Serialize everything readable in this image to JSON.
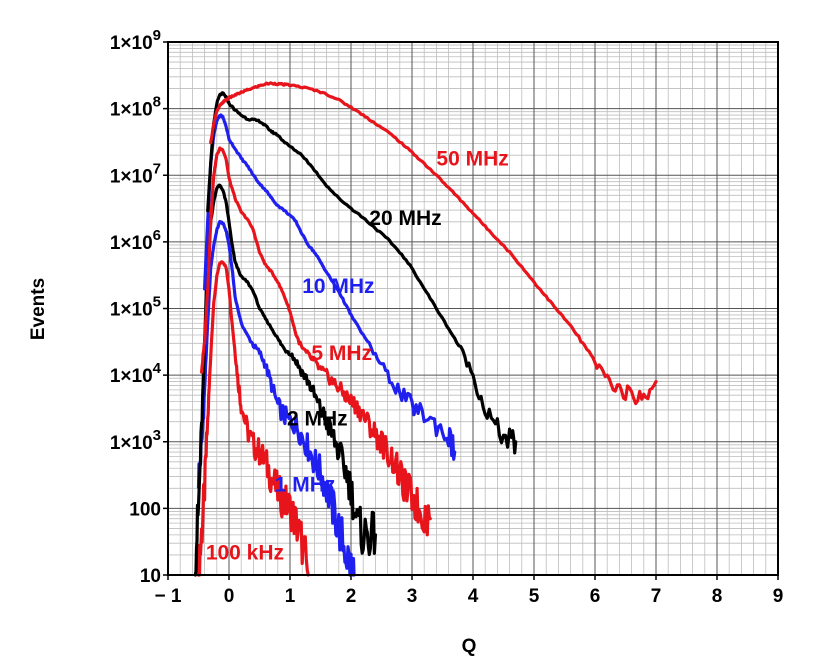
{
  "chart_data": {
    "type": "line",
    "title": "",
    "xlabel": "Q",
    "ylabel": "Events",
    "xlim": [
      -1,
      9
    ],
    "ylim": [
      10,
      1000000000
    ],
    "yscale": "log",
    "grid": true,
    "x_ticks": [
      "− 1",
      "0",
      "1",
      "2",
      "3",
      "4",
      "5",
      "6",
      "7",
      "8",
      "9"
    ],
    "x_tick_values": [
      -1,
      0,
      1,
      2,
      3,
      4,
      5,
      6,
      7,
      8,
      9
    ],
    "y_ticks": [
      {
        "value": 10,
        "label": "10"
      },
      {
        "value": 100,
        "label": "100"
      },
      {
        "value": 1000,
        "label": "1×10",
        "exp": "3"
      },
      {
        "value": 10000,
        "label": "1×10",
        "exp": "4"
      },
      {
        "value": 100000,
        "label": "1×10",
        "exp": "5"
      },
      {
        "value": 1000000,
        "label": "1×10",
        "exp": "6"
      },
      {
        "value": 10000000,
        "label": "1×10",
        "exp": "7"
      },
      {
        "value": 100000000,
        "label": "1×10",
        "exp": "8"
      },
      {
        "value": 1000000000,
        "label": "1×10",
        "exp": "9"
      }
    ],
    "series": [
      {
        "name": "100 kHz",
        "label": "100 kHz",
        "color": "#e8141b",
        "x": [
          -0.5,
          -0.45,
          -0.4,
          -0.35,
          -0.3,
          -0.25,
          -0.2,
          -0.15,
          -0.1,
          -0.05,
          0.0,
          0.05,
          0.1,
          0.15,
          0.2,
          0.3,
          0.4,
          0.5,
          0.6,
          0.7,
          0.8,
          0.9,
          1.0,
          1.1,
          1.2,
          1.3
        ],
        "y": [
          10,
          40,
          200,
          2000,
          20000,
          120000,
          300000,
          480000,
          500000,
          420000,
          200000,
          60000,
          22000,
          8000,
          3500,
          1500,
          900,
          700,
          500,
          280,
          180,
          130,
          100,
          60,
          30,
          10
        ]
      },
      {
        "name": "1 MHz",
        "label": "1 MHz",
        "color": "#1f1ff0",
        "x": [
          -0.5,
          -0.45,
          -0.4,
          -0.35,
          -0.3,
          -0.25,
          -0.2,
          -0.15,
          -0.1,
          -0.05,
          0.0,
          0.05,
          0.1,
          0.2,
          0.3,
          0.4,
          0.5,
          0.6,
          0.7,
          0.8,
          0.9,
          1.0,
          1.1,
          1.2,
          1.3,
          1.4,
          1.5,
          1.6,
          1.7,
          1.8,
          1.9,
          2.0,
          2.05
        ],
        "y": [
          300,
          800,
          6000,
          60000,
          400000,
          900000,
          1500000,
          2000000,
          1900000,
          1500000,
          900000,
          400000,
          150000,
          60000,
          40000,
          28000,
          22000,
          14000,
          7000,
          3500,
          2500,
          2000,
          1800,
          1200,
          800,
          500,
          350,
          200,
          100,
          50,
          25,
          12,
          10
        ]
      },
      {
        "name": "2 MHz",
        "label": "2 MHz",
        "color": "#000000",
        "x": [
          -0.55,
          -0.5,
          -0.45,
          -0.4,
          -0.35,
          -0.3,
          -0.25,
          -0.2,
          -0.15,
          -0.1,
          -0.05,
          0.0,
          0.05,
          0.1,
          0.2,
          0.3,
          0.4,
          0.5,
          0.6,
          0.7,
          0.8,
          0.9,
          1.0,
          1.1,
          1.2,
          1.3,
          1.4,
          1.5,
          1.6,
          1.7,
          1.8,
          1.9,
          2.0,
          2.1,
          2.2,
          2.3,
          2.4
        ],
        "y": [
          18,
          100,
          1500,
          30000,
          600000,
          2000000,
          4000000,
          6500000,
          7000000,
          6000000,
          4000000,
          2000000,
          900000,
          500000,
          300000,
          250000,
          180000,
          100000,
          70000,
          50000,
          35000,
          25000,
          22000,
          16000,
          11000,
          8000,
          5000,
          3000,
          2000,
          1200,
          700,
          400,
          200,
          60,
          40,
          40,
          40
        ]
      },
      {
        "name": "5 MHz",
        "label": "5 MHz",
        "color": "#e8141b",
        "x": [
          -0.45,
          -0.4,
          -0.35,
          -0.3,
          -0.25,
          -0.2,
          -0.15,
          -0.1,
          -0.05,
          0.0,
          0.1,
          0.2,
          0.3,
          0.4,
          0.5,
          0.6,
          0.7,
          0.8,
          0.9,
          1.0,
          1.1,
          1.2,
          1.3,
          1.4,
          1.5,
          1.6,
          1.7,
          1.8,
          1.9,
          2.0,
          2.1,
          2.2,
          2.3,
          2.4,
          2.5,
          2.6,
          2.7,
          2.8,
          2.9,
          3.0,
          3.1,
          3.2,
          3.3
        ],
        "y": [
          12000,
          30000,
          200000,
          2000000,
          10000000,
          20000000,
          25000000,
          24000000,
          18000000,
          9000000,
          4500000,
          2800000,
          2200000,
          1500000,
          700000,
          450000,
          350000,
          250000,
          160000,
          90000,
          40000,
          25000,
          20000,
          16000,
          12000,
          10000,
          8000,
          6500,
          5000,
          4000,
          3300,
          2500,
          1800,
          1300,
          1000,
          700,
          500,
          300,
          200,
          150,
          100,
          80,
          70
        ]
      },
      {
        "name": "10 MHz",
        "label": "10 MHz",
        "color": "#1f1ff0",
        "x": [
          -0.4,
          -0.35,
          -0.3,
          -0.25,
          -0.2,
          -0.15,
          -0.1,
          -0.05,
          0.0,
          0.1,
          0.2,
          0.3,
          0.4,
          0.5,
          0.6,
          0.7,
          0.8,
          0.9,
          1.0,
          1.1,
          1.2,
          1.3,
          1.4,
          1.5,
          1.6,
          1.7,
          1.8,
          1.9,
          2.0,
          2.2,
          2.4,
          2.6,
          2.8,
          3.0,
          3.2,
          3.4,
          3.6,
          3.7
        ],
        "y": [
          200000,
          2000000,
          15000000,
          40000000,
          65000000,
          80000000,
          75000000,
          55000000,
          35000000,
          25000000,
          18000000,
          14000000,
          10000000,
          7500000,
          6000000,
          4500000,
          3500000,
          3000000,
          2500000,
          2000000,
          1300000,
          900000,
          700000,
          500000,
          350000,
          250000,
          180000,
          120000,
          80000,
          40000,
          20000,
          10000,
          5500,
          3500,
          2500,
          1800,
          1200,
          700
        ]
      },
      {
        "name": "20 MHz",
        "label": "20 MHz",
        "color": "#000000",
        "x": [
          -0.35,
          -0.3,
          -0.25,
          -0.2,
          -0.15,
          -0.1,
          -0.05,
          0.0,
          0.1,
          0.2,
          0.3,
          0.4,
          0.5,
          0.6,
          0.7,
          0.8,
          0.9,
          1.0,
          1.2,
          1.4,
          1.6,
          1.8,
          2.0,
          2.2,
          2.4,
          2.6,
          2.8,
          3.0,
          3.2,
          3.4,
          3.6,
          3.8,
          4.0,
          4.2,
          4.4,
          4.6,
          4.7
        ],
        "y": [
          3000000,
          15000000,
          60000000,
          120000000,
          160000000,
          170000000,
          150000000,
          120000000,
          95000000,
          80000000,
          70000000,
          68000000,
          65000000,
          55000000,
          45000000,
          40000000,
          32000000,
          27000000,
          20000000,
          12000000,
          7000000,
          4500000,
          3200000,
          2300000,
          1600000,
          1100000,
          700000,
          400000,
          200000,
          100000,
          50000,
          25000,
          10000,
          3000,
          1500,
          1000,
          1000
        ]
      },
      {
        "name": "50 MHz",
        "label": "50 MHz",
        "color": "#e8141b",
        "x": [
          -0.3,
          -0.25,
          -0.2,
          -0.15,
          -0.1,
          -0.05,
          0.0,
          0.1,
          0.2,
          0.3,
          0.4,
          0.5,
          0.6,
          0.7,
          0.8,
          0.9,
          1.0,
          1.2,
          1.4,
          1.6,
          1.8,
          2.0,
          2.2,
          2.4,
          2.6,
          2.8,
          3.0,
          3.2,
          3.4,
          3.6,
          3.8,
          4.0,
          4.2,
          4.4,
          4.6,
          4.8,
          5.0,
          5.2,
          5.4,
          5.6,
          5.8,
          6.0,
          6.2,
          6.4,
          6.6,
          6.8,
          7.0
        ],
        "y": [
          30000000,
          60000000,
          90000000,
          110000000,
          125000000,
          135000000,
          145000000,
          160000000,
          175000000,
          190000000,
          205000000,
          220000000,
          235000000,
          240000000,
          235000000,
          230000000,
          225000000,
          210000000,
          190000000,
          165000000,
          135000000,
          105000000,
          80000000,
          60000000,
          45000000,
          32000000,
          22000000,
          15000000,
          10000000,
          6500000,
          4200000,
          2700000,
          1700000,
          1100000,
          700000,
          420000,
          250000,
          150000,
          90000,
          55000,
          30000,
          15000,
          9000,
          6000,
          5000,
          4500,
          8000
        ]
      }
    ],
    "annotations": [
      {
        "series": "50 MHz",
        "text": "50 MHz",
        "x": 3.4,
        "y": 14000000
      },
      {
        "series": "20 MHz",
        "text": "20 MHz",
        "x": 2.3,
        "y": 1800000
      },
      {
        "series": "10 MHz",
        "text": "10 MHz",
        "x": 1.2,
        "y": 170000
      },
      {
        "series": "5 MHz",
        "text": "5 MHz",
        "x": 1.35,
        "y": 17000
      },
      {
        "series": "2 MHz",
        "text": "2 MHz",
        "x": 0.95,
        "y": 1750
      },
      {
        "series": "1 MHz",
        "text": "1 MHz",
        "x": 0.75,
        "y": 180
      },
      {
        "series": "100 kHz",
        "text": "100 kHz",
        "x": -0.38,
        "y": 17
      }
    ]
  }
}
